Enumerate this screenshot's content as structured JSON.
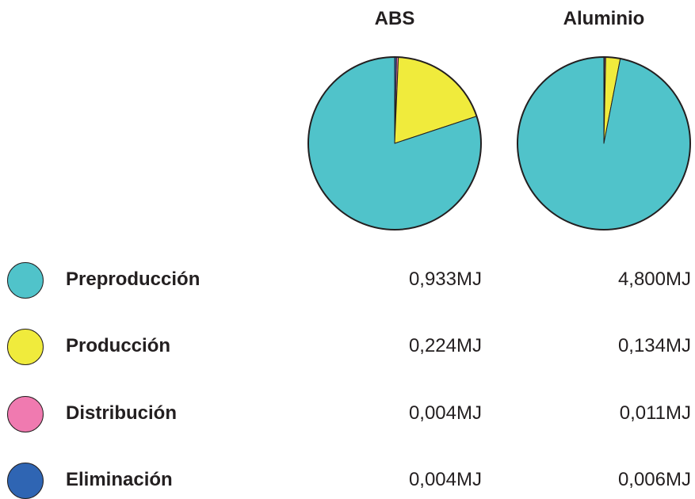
{
  "chart_data": {
    "type": "pie",
    "unit": "MJ",
    "categories": [
      "Preproducción",
      "Producción",
      "Distribución",
      "Eliminación"
    ],
    "colors": [
      "#50c3ca",
      "#f0eb3c",
      "#f07ab0",
      "#2f65b3"
    ],
    "series": [
      {
        "name": "ABS",
        "values": [
          0.933,
          0.224,
          0.004,
          0.004
        ],
        "labels": [
          "0,933",
          "0,224",
          "0,004",
          "0,004"
        ]
      },
      {
        "name": "Aluminio",
        "values": [
          4.8,
          0.134,
          0.011,
          0.006
        ],
        "labels": [
          "4,800",
          "0,134",
          "0,011",
          "0,006"
        ]
      }
    ]
  }
}
